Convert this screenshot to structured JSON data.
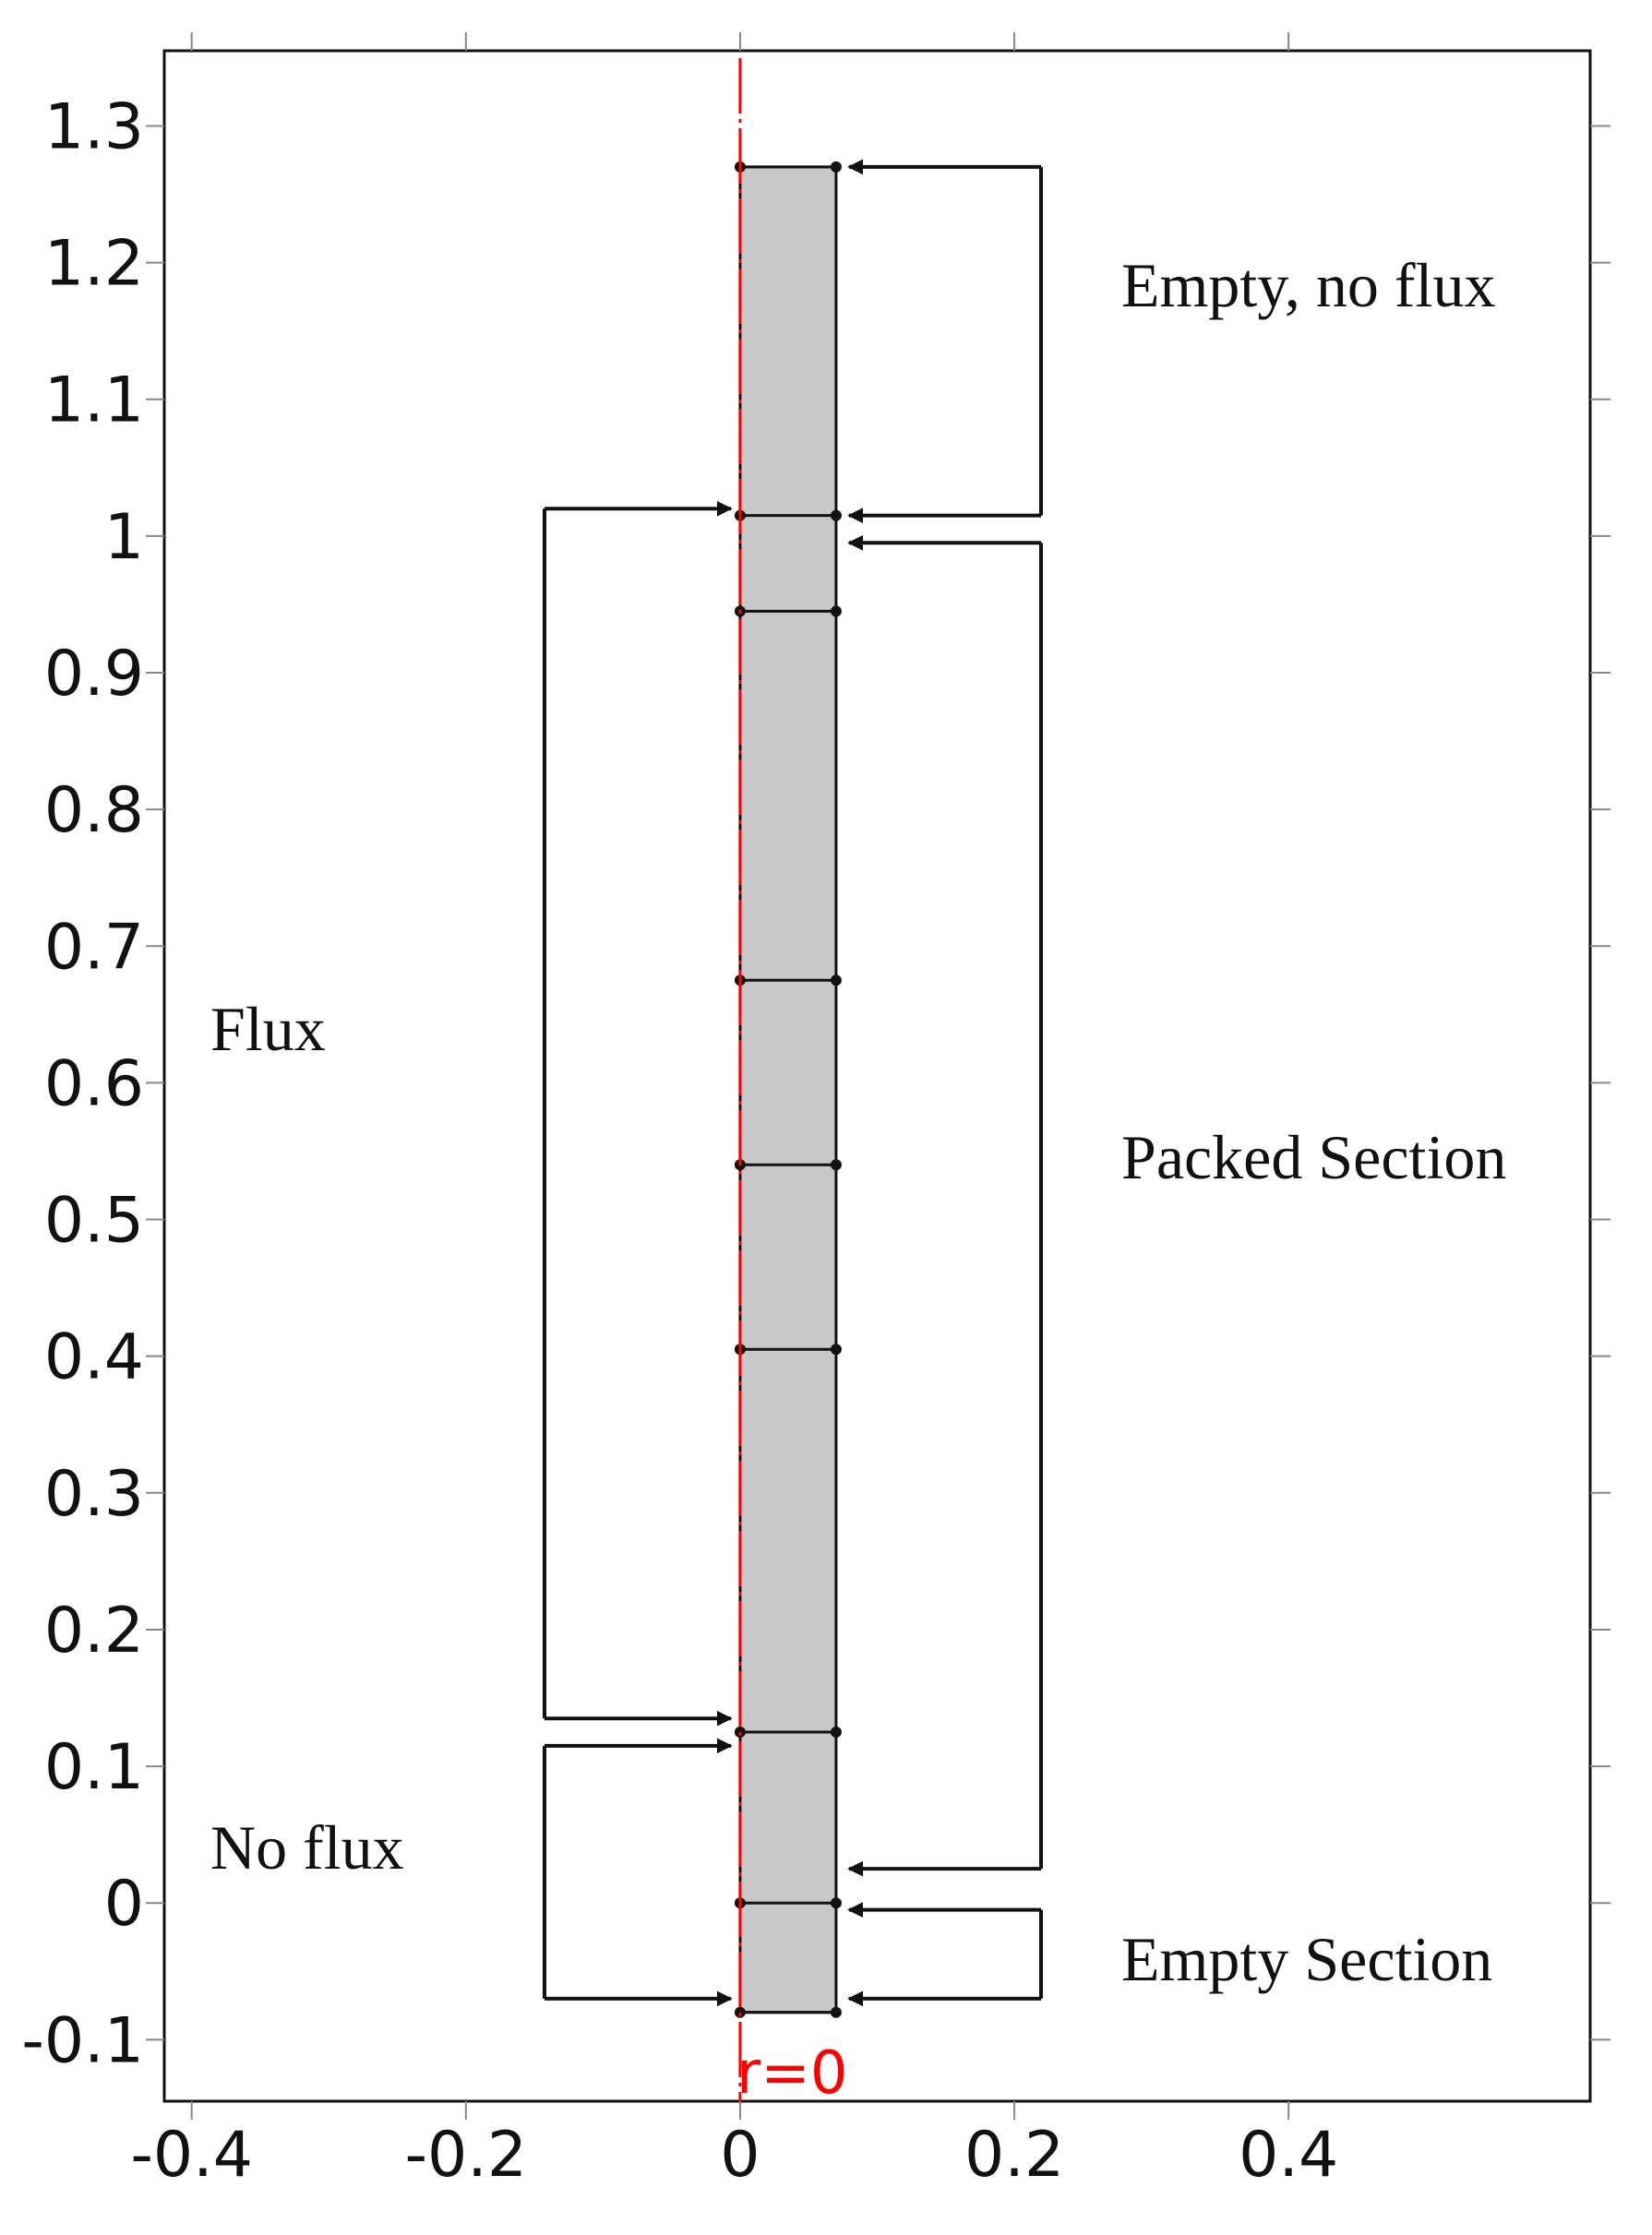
{
  "figure": {
    "type": "axisymmetric column geometry (r-z plot)",
    "x_ticks": [
      "-0.4",
      "-0.2",
      "0",
      "0.2",
      "0.4"
    ],
    "y_ticks": [
      "-0.1",
      "0",
      "0.1",
      "0.2",
      "0.3",
      "0.4",
      "0.5",
      "0.6",
      "0.7",
      "0.8",
      "0.9",
      "1",
      "1.1",
      "1.2",
      "1.3"
    ],
    "x_range": [
      -0.42,
      0.62
    ],
    "y_range": [
      -0.145,
      1.355
    ],
    "axis_label": "r=0",
    "colors": {
      "column_fill": "#c8c8c8",
      "axis_line": "#ff0000",
      "ink": "#111111"
    }
  },
  "column": {
    "r_min": 0,
    "r_max": 0.07,
    "z_min": -0.08,
    "z_max": 1.27,
    "boundaries_z": [
      -0.08,
      0.0,
      0.125,
      0.405,
      0.54,
      0.675,
      0.945,
      1.015,
      1.27
    ]
  },
  "labels": {
    "empty_no_flux": "Empty, no flux",
    "packed_section": "Packed Section",
    "empty_section": "Empty Section",
    "flux": "Flux",
    "no_flux": "No flux"
  },
  "brackets": {
    "empty_no_flux": {
      "z_top": 1.27,
      "z_bottom": 1.015
    },
    "packed_section": {
      "z_top": 0.995,
      "z_bottom": 0.025
    },
    "empty_section": {
      "z_top": -0.005,
      "z_bottom": -0.07
    },
    "flux": {
      "z_top": 1.02,
      "z_bottom": 0.135
    },
    "no_flux": {
      "z_top": 0.115,
      "z_bottom": -0.07
    }
  }
}
